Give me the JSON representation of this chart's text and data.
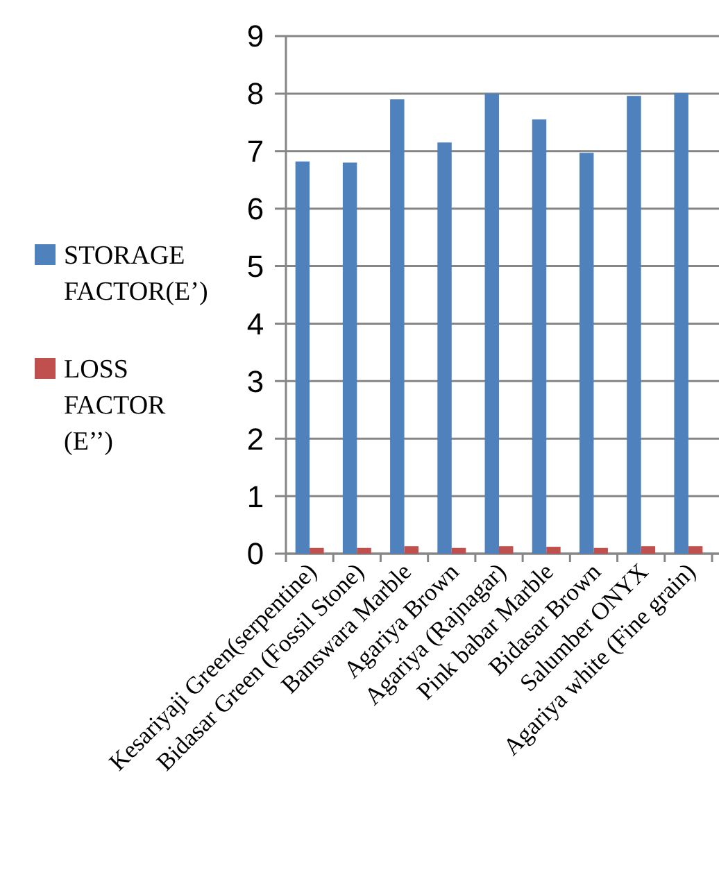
{
  "chart_data": {
    "type": "bar",
    "categories": [
      "Kesariyaji Green(serpentine)",
      "Bidasar Green (Fossil Stone)",
      "Banswara Marble",
      "Agariya Brown",
      "Agariya (Rajnagar)",
      "Pink babar Marble",
      "Bidasar Brown",
      "Salumber ONYX",
      "Agariya white (Fine grain)"
    ],
    "series": [
      {
        "name": "STORAGE FACTOR(E’)",
        "color": "#4f81bd",
        "values": [
          6.82,
          6.8,
          7.9,
          7.15,
          8.0,
          7.55,
          6.97,
          7.96,
          8.01
        ]
      },
      {
        "name": "LOSS FACTOR (E’’)",
        "color": "#c0504d",
        "values": [
          0.1,
          0.1,
          0.13,
          0.1,
          0.13,
          0.12,
          0.1,
          0.13,
          0.13
        ]
      }
    ],
    "ylim": [
      0,
      9
    ],
    "yticks": [
      0,
      1,
      2,
      3,
      4,
      5,
      6,
      7,
      8,
      9
    ],
    "grid": "y",
    "legend": "left"
  }
}
